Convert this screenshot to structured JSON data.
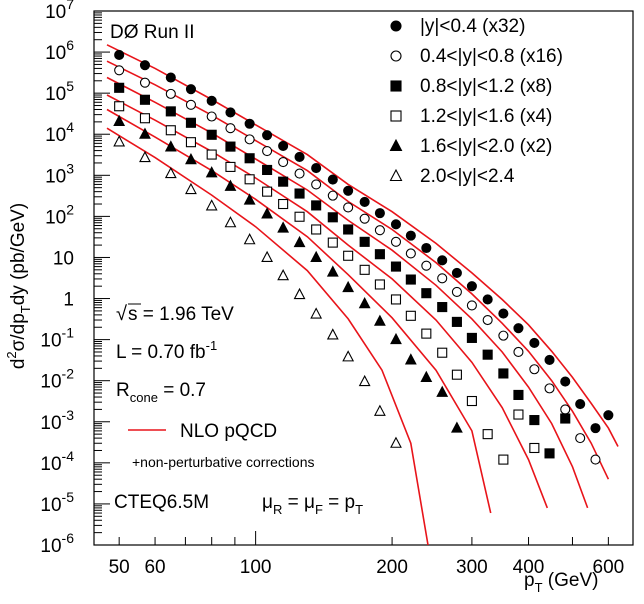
{
  "chart_data": {
    "type": "scatter",
    "title": "",
    "xlabel": {
      "main": "p",
      "sub": "T",
      "unit": " (GeV)"
    },
    "ylabel": {
      "d": "d",
      "sup2": "2",
      "sigma": "σ/dp",
      "sub": "T",
      "rest": "dy (pb/GeV)"
    },
    "xscale": "log",
    "yscale": "log",
    "xlim": [
      44,
      680
    ],
    "ylim": [
      1e-06,
      10000000.0
    ],
    "x_ticklabels": [
      "50",
      "60",
      "100",
      "200",
      "300",
      "400",
      "600"
    ],
    "y_ticklabels": [
      {
        "base": "10",
        "exp": "7"
      },
      {
        "base": "10",
        "exp": "6"
      },
      {
        "base": "10",
        "exp": "5"
      },
      {
        "base": "10",
        "exp": "4"
      },
      {
        "base": "10",
        "exp": "3"
      },
      {
        "base": "10",
        "exp": "2"
      },
      {
        "base": "10",
        "exp": ""
      },
      {
        "base": "1",
        "exp": ""
      },
      {
        "base": "10",
        "exp": "-1"
      },
      {
        "base": "10",
        "exp": "-2"
      },
      {
        "base": "10",
        "exp": "-3"
      },
      {
        "base": "10",
        "exp": "-4"
      },
      {
        "base": "10",
        "exp": "-5"
      },
      {
        "base": "10",
        "exp": "-6"
      }
    ],
    "series": [
      {
        "name": "|y|<0.4 (x32)",
        "marker": "filled-circle",
        "x": [
          50,
          57,
          65,
          72,
          80,
          88,
          97,
          106,
          115,
          125,
          136,
          148,
          160,
          174,
          188,
          204,
          220,
          238,
          258,
          278,
          300,
          325,
          352,
          380,
          412,
          445,
          482,
          520,
          562,
          600
        ],
        "y": [
          850000.0,
          480000.0,
          240000.0,
          125000.0,
          65000.0,
          34000.0,
          18000.0,
          9500.0,
          5200.0,
          2800.0,
          1500.0,
          790,
          420,
          225,
          120,
          64,
          34,
          17,
          8.5,
          4.2,
          2.0,
          0.95,
          0.43,
          0.19,
          0.083,
          0.032,
          0.0095,
          0.0027,
          0.0007,
          0.00145
        ]
      },
      {
        "name": "0.4<|y|<0.8 (x16)",
        "marker": "open-circle",
        "x": [
          50,
          57,
          65,
          72,
          80,
          88,
          97,
          106,
          115,
          125,
          136,
          148,
          160,
          174,
          188,
          204,
          220,
          238,
          258,
          278,
          300,
          325,
          352,
          380,
          412,
          445,
          482,
          520,
          562
        ],
        "y": [
          360000.0,
          180000.0,
          96000.0,
          52000.0,
          27000.0,
          14000.0,
          7500.0,
          3900.0,
          2100.0,
          1100.0,
          600,
          320,
          165,
          88,
          46,
          24,
          12.5,
          6.3,
          3.1,
          1.45,
          0.68,
          0.3,
          0.125,
          0.05,
          0.019,
          0.0065,
          0.002,
          0.0004,
          0.00012
        ]
      },
      {
        "name": "0.8<|y|<1.2 (x8)",
        "marker": "filled-square",
        "x": [
          50,
          57,
          65,
          72,
          80,
          88,
          97,
          106,
          115,
          125,
          136,
          148,
          160,
          174,
          188,
          204,
          220,
          238,
          258,
          278,
          300,
          325,
          352,
          380,
          412,
          445,
          482
        ],
        "y": [
          135000.0,
          69000.0,
          36000.0,
          19000.0,
          9700.0,
          5000.0,
          2600.0,
          1350.0,
          700,
          360,
          185,
          95,
          48,
          24,
          12,
          6.0,
          2.9,
          1.35,
          0.62,
          0.27,
          0.11,
          0.043,
          0.015,
          0.0045,
          0.0011,
          0.00017,
          0.0012
        ]
      },
      {
        "name": "1.2<|y|<1.6 (x4)",
        "marker": "open-square",
        "x": [
          50,
          57,
          65,
          72,
          80,
          88,
          97,
          106,
          115,
          125,
          136,
          148,
          160,
          174,
          188,
          204,
          220,
          238,
          258,
          278,
          300,
          325,
          352,
          380,
          412
        ],
        "y": [
          48000.0,
          24500.0,
          12500.0,
          6400.0,
          3200.0,
          1600.0,
          800,
          400,
          200,
          98,
          48,
          23,
          11,
          5.0,
          2.2,
          0.95,
          0.38,
          0.14,
          0.048,
          0.014,
          0.0032,
          0.0005,
          0.00012,
          0.0015,
          0.00023
        ]
      },
      {
        "name": "1.6<|y|<2.0 (x2)",
        "marker": "filled-triangle",
        "x": [
          50,
          57,
          65,
          72,
          80,
          88,
          97,
          106,
          115,
          125,
          136,
          148,
          160,
          174,
          188,
          204,
          220,
          238,
          258,
          278
        ],
        "y": [
          20500.0,
          10000.0,
          4900.0,
          2400.0,
          1150.0,
          540,
          250,
          115,
          52,
          23,
          10,
          4.4,
          1.85,
          0.75,
          0.28,
          0.1,
          0.032,
          0.012,
          0.0052,
          0.0007
        ]
      },
      {
        "name": "2.0<|y|<2.4",
        "marker": "open-triangle",
        "x": [
          50,
          57,
          65,
          72,
          80,
          88,
          97,
          106,
          115,
          125,
          136,
          148,
          160,
          174,
          188,
          204
        ],
        "y": [
          6500.0,
          2700.0,
          1100.0,
          450,
          180,
          70,
          27,
          10,
          3.6,
          1.25,
          0.42,
          0.13,
          0.038,
          0.0095,
          0.0018,
          0.0003
        ]
      }
    ],
    "curves": [
      {
        "x": [
          47,
          60,
          80,
          100,
          130,
          160,
          200,
          250,
          300,
          350,
          400,
          450,
          500,
          550,
          600,
          630
        ],
        "y": [
          1500000.0,
          400000.0,
          70000.0,
          17000.0,
          3200.0,
          600,
          130,
          22,
          4.2,
          0.95,
          0.23,
          0.052,
          0.012,
          0.0028,
          0.0007,
          0.00025
        ]
      },
      {
        "x": [
          47,
          60,
          80,
          100,
          130,
          160,
          200,
          250,
          300,
          350,
          400,
          450,
          500,
          550,
          600
        ],
        "y": [
          600000.0,
          160000.0,
          29000.0,
          7000.0,
          1300.0,
          230,
          48,
          7.5,
          1.3,
          0.25,
          0.052,
          0.01,
          0.0018,
          0.0003,
          4e-05
        ]
      },
      {
        "x": [
          47,
          60,
          80,
          100,
          130,
          160,
          200,
          250,
          300,
          350,
          400,
          450,
          500,
          540
        ],
        "y": [
          240000.0,
          60000.0,
          10700.0,
          2500.0,
          440,
          80,
          15,
          2.1,
          0.32,
          0.05,
          0.007,
          0.0009,
          8e-05,
          8e-06
        ]
      },
      {
        "x": [
          47,
          60,
          80,
          100,
          130,
          160,
          200,
          250,
          300,
          350,
          400,
          440
        ],
        "y": [
          90000.0,
          22000.0,
          3800.0,
          860,
          130,
          20,
          3.0,
          0.3,
          0.028,
          0.0022,
          0.00012,
          8e-06
        ]
      },
      {
        "x": [
          47,
          60,
          80,
          100,
          130,
          160,
          200,
          250,
          300,
          330
        ],
        "y": [
          40000.0,
          8500.0,
          1300.0,
          260,
          32,
          3.8,
          0.34,
          0.018,
          0.0006,
          6e-06
        ]
      },
      {
        "x": [
          47,
          60,
          80,
          100,
          130,
          160,
          190,
          220,
          240
        ],
        "y": [
          14000.0,
          2700.0,
          330,
          56,
          4.8,
          0.32,
          0.018,
          0.0003,
          1e-06
        ]
      }
    ],
    "curve_label": "NLO pQCD",
    "curve_sublabel": "+non-perturbative corrections",
    "curve_color": "#e8141a",
    "annotations": {
      "experiment": "DØ Run II",
      "energy": "s = 1.96 TeV",
      "energy_root": "√",
      "lumi_main": "L = 0.70 fb",
      "lumi_exp": "-1",
      "rcone_main": "R",
      "rcone_sub": "cone",
      "rcone_rest": " = 0.7",
      "pdf": "CTEQ6.5M",
      "scale_mu": "μ",
      "scale_R": "R",
      "scale_eq1": " = μ",
      "scale_F": "F",
      "scale_eq2": " = p",
      "scale_T": "T"
    },
    "grid": false,
    "legend_position": "top-right"
  }
}
